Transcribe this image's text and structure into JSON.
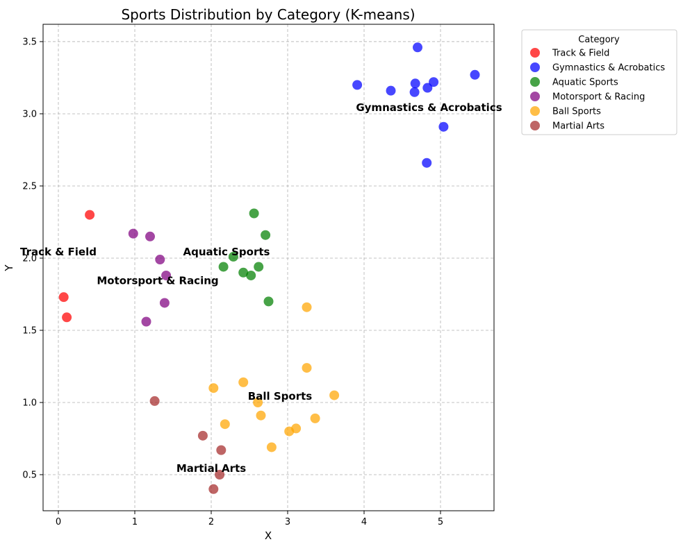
{
  "chart_data": {
    "type": "scatter",
    "title": "Sports Distribution by Category (K-means)",
    "xlabel": "X",
    "ylabel": "Y",
    "xlim": [
      -0.2,
      5.7
    ],
    "ylim": [
      0.25,
      3.62
    ],
    "xticks": [
      0,
      1,
      2,
      3,
      4,
      5
    ],
    "yticks": [
      0.5,
      1.0,
      1.5,
      2.0,
      2.5,
      3.0,
      3.5
    ],
    "xtick_labels": [
      "0",
      "1",
      "2",
      "3",
      "4",
      "5"
    ],
    "ytick_labels": [
      "0.5",
      "1.0",
      "1.5",
      "2.0",
      "2.5",
      "3.0",
      "3.5"
    ],
    "grid": true,
    "legend_title": "Category",
    "legend_position": "outside-top-right",
    "series": [
      {
        "name": "Track & Field",
        "color": "#ff0000",
        "x": [
          0.41,
          0.07,
          0.11
        ],
        "y": [
          2.3,
          1.73,
          1.59
        ],
        "annotation": {
          "text": "Track & Field",
          "x": 0.0,
          "y": 2.02
        }
      },
      {
        "name": "Gymnastics & Acrobatics",
        "color": "#0000ff",
        "x": [
          4.7,
          3.91,
          4.35,
          4.67,
          4.66,
          4.83,
          4.91,
          5.45,
          5.04,
          4.82
        ],
        "y": [
          3.46,
          3.2,
          3.16,
          3.21,
          3.15,
          3.18,
          3.22,
          3.27,
          2.91,
          2.66
        ],
        "annotation": {
          "text": "Gymnastics & Acrobatics",
          "x": 4.85,
          "y": 3.02
        }
      },
      {
        "name": "Aquatic Sports",
        "color": "#008000",
        "x": [
          2.56,
          2.71,
          2.29,
          2.16,
          2.42,
          2.52,
          2.62,
          2.75
        ],
        "y": [
          2.31,
          2.16,
          2.01,
          1.94,
          1.9,
          1.88,
          1.94,
          1.7
        ],
        "annotation": {
          "text": "Aquatic Sports",
          "x": 2.2,
          "y": 2.02
        }
      },
      {
        "name": "Motorsport & Racing",
        "color": "#800080",
        "x": [
          0.98,
          1.2,
          1.33,
          1.41,
          1.39,
          1.15
        ],
        "y": [
          2.17,
          2.15,
          1.99,
          1.88,
          1.69,
          1.56
        ],
        "annotation": {
          "text": "Motorsport & Racing",
          "x": 1.3,
          "y": 1.82
        }
      },
      {
        "name": "Ball Sports",
        "color": "#ffa500",
        "x": [
          3.25,
          3.25,
          2.42,
          2.03,
          2.61,
          2.65,
          2.18,
          3.61,
          3.36,
          3.11,
          3.02,
          2.79
        ],
        "y": [
          1.66,
          1.24,
          1.14,
          1.1,
          1.0,
          0.91,
          0.85,
          1.05,
          0.89,
          0.82,
          0.8,
          0.69
        ],
        "annotation": {
          "text": "Ball Sports",
          "x": 2.9,
          "y": 1.02
        }
      },
      {
        "name": "Martial Arts",
        "color": "#a52a2a",
        "x": [
          1.26,
          1.89,
          2.13,
          2.11,
          2.03
        ],
        "y": [
          1.01,
          0.77,
          0.67,
          0.5,
          0.4
        ],
        "annotation": {
          "text": "Martial Arts",
          "x": 2.0,
          "y": 0.52
        }
      }
    ]
  }
}
